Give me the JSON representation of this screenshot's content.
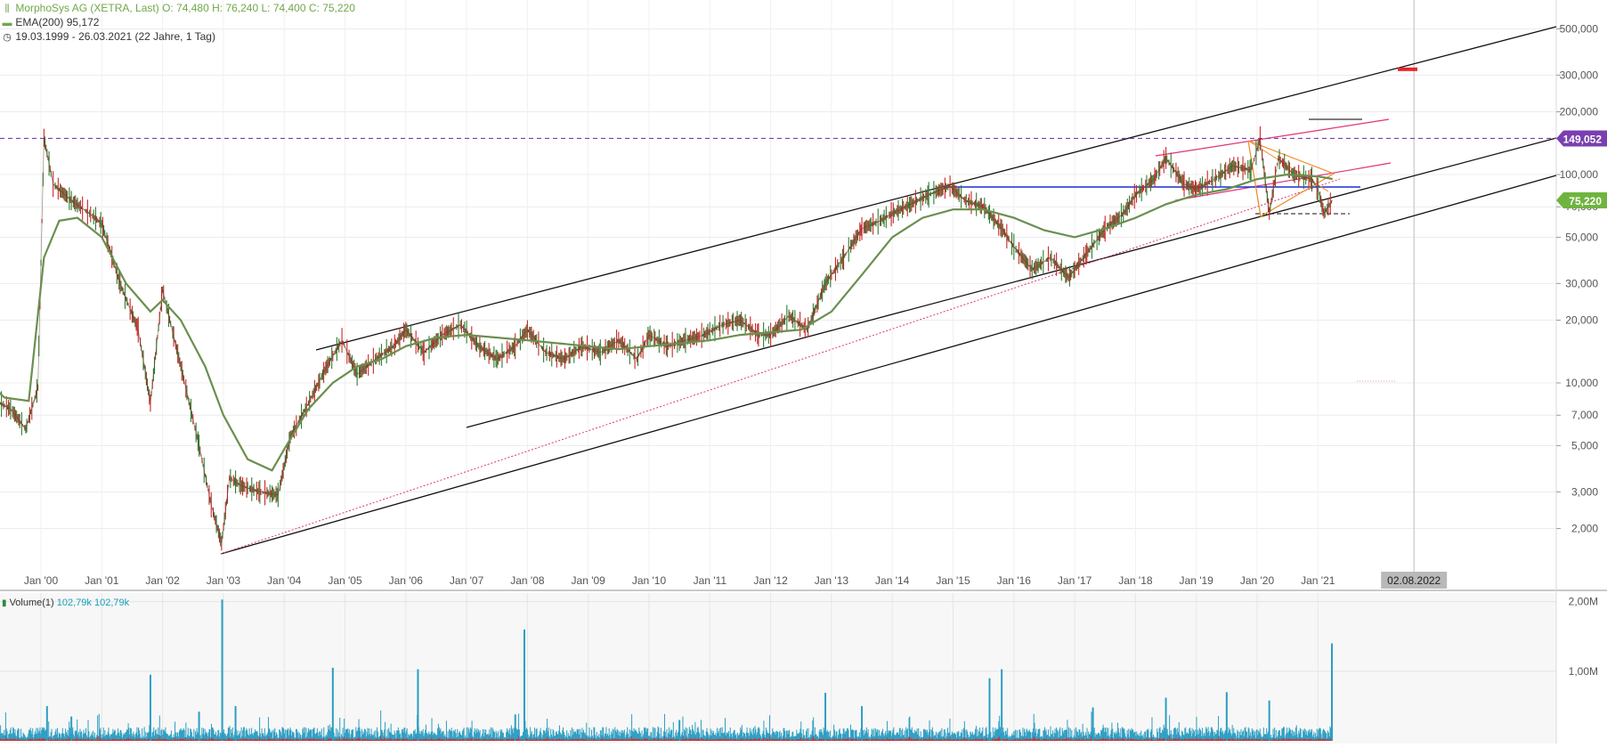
{
  "legend": {
    "title": "MorphoSys AG (XETRA, Last)",
    "ohlc": "O: 74,480  H: 76,240  L: 74,400  C: 75,220",
    "ema_label": "EMA(200)",
    "ema_value": "95,172",
    "range": "19.03.1999 - 26.03.2021",
    "range_detail": "(22 Jahre, 1 Tag)",
    "volume_label": "Volume(1)",
    "volume_value1": "102,79k",
    "volume_value2": "102,79k"
  },
  "colors": {
    "price_up": "#2e7d32",
    "price_down": "#c62828",
    "ema": "#6a8f4e",
    "channel": "#111111",
    "pink": "#e0337a",
    "blue_line": "#1a2fd6",
    "orange": "#f08a24",
    "resistance": "#7a3fb0",
    "last_price_badge": "#6fb43f",
    "level_badge": "#7a3fb0",
    "volume": "#2c9ec2",
    "volume_red": "#d32f2f",
    "marker_red": "#e5262a"
  },
  "badges": {
    "level": "149,052",
    "last_price": "75,220",
    "crosshair_date": "02.08.2022"
  },
  "chart_data": {
    "type": "line",
    "title": "MorphoSys AG (XETRA, Last)",
    "yscale": "log",
    "ylim": [
      1500,
      600000
    ],
    "x_ticks": [
      "Jan '00",
      "Jan '01",
      "Jan '02",
      "Jan '03",
      "Jan '04",
      "Jan '05",
      "Jan '06",
      "Jan '07",
      "Jan '08",
      "Jan '09",
      "Jan '10",
      "Jan '11",
      "Jan '12",
      "Jan '13",
      "Jan '14",
      "Jan '15",
      "Jan '16",
      "Jan '17",
      "Jan '18",
      "Jan '19",
      "Jan '20",
      "Jan '21"
    ],
    "y_ticks": [
      {
        "value": 500000,
        "label": "500,000"
      },
      {
        "value": 300000,
        "label": "300,000"
      },
      {
        "value": 200000,
        "label": "200,000"
      },
      {
        "value": 100000,
        "label": "100,000"
      },
      {
        "value": 70000,
        "label": "70,000"
      },
      {
        "value": 50000,
        "label": "50,000"
      },
      {
        "value": 30000,
        "label": "30,000"
      },
      {
        "value": 20000,
        "label": "20,000"
      },
      {
        "value": 10000,
        "label": "10,000"
      },
      {
        "value": 7000,
        "label": "7,000"
      },
      {
        "value": 5000,
        "label": "5,000"
      },
      {
        "value": 3000,
        "label": "3,000"
      },
      {
        "value": 2000,
        "label": "2,000"
      }
    ],
    "series": [
      {
        "name": "MorphoSys AG (XETRA, Last)",
        "x": [
          1999.0,
          1999.5,
          1999.75,
          1999.95,
          2000.05,
          2000.2,
          2000.5,
          2000.8,
          2001.0,
          2001.3,
          2001.6,
          2001.8,
          2002.0,
          2002.3,
          2002.6,
          2002.8,
          2002.97,
          2003.1,
          2003.3,
          2003.6,
          2003.9,
          2004.1,
          2004.4,
          2004.7,
          2004.95,
          2005.2,
          2005.5,
          2005.8,
          2006.0,
          2006.3,
          2006.6,
          2006.9,
          2007.2,
          2007.5,
          2007.8,
          2008.0,
          2008.3,
          2008.6,
          2008.9,
          2009.2,
          2009.5,
          2009.8,
          2010.0,
          2010.3,
          2010.6,
          2010.9,
          2011.2,
          2011.5,
          2011.8,
          2012.0,
          2012.3,
          2012.6,
          2012.9,
          2013.2,
          2013.5,
          2013.8,
          2014.0,
          2014.3,
          2014.6,
          2014.95,
          2015.2,
          2015.5,
          2015.8,
          2016.0,
          2016.3,
          2016.6,
          2016.9,
          2017.2,
          2017.5,
          2017.8,
          2018.0,
          2018.3,
          2018.5,
          2018.8,
          2019.0,
          2019.3,
          2019.6,
          2019.9,
          2020.05,
          2020.2,
          2020.35,
          2020.6,
          2020.9,
          2021.0,
          2021.1,
          2021.24
        ],
        "values": [
          9000,
          7500,
          6000,
          9500,
          150000,
          90000,
          75000,
          65000,
          58000,
          30000,
          18000,
          8000,
          28000,
          12000,
          5000,
          2600,
          1700,
          3500,
          3200,
          3000,
          2900,
          5500,
          8000,
          12000,
          16000,
          11000,
          13000,
          15000,
          18000,
          14000,
          17000,
          19000,
          15000,
          13000,
          15000,
          18000,
          14000,
          13000,
          15000,
          14000,
          16000,
          13000,
          17000,
          15000,
          16000,
          17000,
          19000,
          20000,
          17000,
          17000,
          21000,
          18000,
          30000,
          40000,
          55000,
          60000,
          65000,
          72000,
          80000,
          88000,
          75000,
          70000,
          55000,
          45000,
          35000,
          40000,
          32000,
          42000,
          55000,
          65000,
          80000,
          95000,
          120000,
          90000,
          85000,
          95000,
          110000,
          105000,
          149052,
          65000,
          120000,
          100000,
          95000,
          85000,
          65000,
          75220
        ]
      },
      {
        "name": "EMA(200)",
        "x": [
          1999.0,
          1999.4,
          1999.8,
          2000.05,
          2000.3,
          2000.6,
          2001.0,
          2001.4,
          2001.8,
          2002.0,
          2002.3,
          2002.7,
          2003.0,
          2003.4,
          2003.8,
          2004.0,
          2004.4,
          2004.8,
          2005.2,
          2005.6,
          2006.0,
          2006.5,
          2007.0,
          2007.5,
          2008.0,
          2008.5,
          2009.0,
          2009.5,
          2010.0,
          2010.5,
          2011.0,
          2011.5,
          2012.0,
          2012.5,
          2013.0,
          2013.5,
          2014.0,
          2014.5,
          2015.0,
          2015.5,
          2016.0,
          2016.5,
          2017.0,
          2017.5,
          2018.0,
          2018.5,
          2019.0,
          2019.5,
          2020.0,
          2020.5,
          2021.0,
          2021.24
        ],
        "values": [
          11000,
          8500,
          8200,
          40000,
          60000,
          62000,
          50000,
          30000,
          22000,
          25000,
          20000,
          12000,
          7000,
          4300,
          3800,
          4800,
          7500,
          10000,
          12000,
          13000,
          15000,
          16500,
          17000,
          16500,
          16000,
          15500,
          15000,
          14500,
          15000,
          15500,
          16000,
          17000,
          17500,
          18000,
          22000,
          33000,
          50000,
          62000,
          68000,
          68000,
          62000,
          54000,
          50000,
          55000,
          62000,
          72000,
          80000,
          85000,
          95000,
          100000,
          98000,
          95172
        ]
      }
    ],
    "volume": {
      "name": "Volume(1)",
      "ylim": [
        0,
        2200000
      ],
      "y_ticks": [
        {
          "value": 2000000,
          "label": "2,00M"
        },
        {
          "value": 1000000,
          "label": "1,00M"
        }
      ],
      "spikes": [
        {
          "x": 1999.3,
          "value": 320000
        },
        {
          "x": 2000.1,
          "value": 500000
        },
        {
          "x": 2000.5,
          "value": 350000
        },
        {
          "x": 2001.8,
          "value": 950000
        },
        {
          "x": 2002.6,
          "value": 420000
        },
        {
          "x": 2002.98,
          "value": 2030000
        },
        {
          "x": 2003.2,
          "value": 500000
        },
        {
          "x": 2004.8,
          "value": 1050000
        },
        {
          "x": 2006.2,
          "value": 1030000
        },
        {
          "x": 2007.8,
          "value": 380000
        },
        {
          "x": 2007.95,
          "value": 1600000
        },
        {
          "x": 2010.5,
          "value": 300000
        },
        {
          "x": 2012.9,
          "value": 690000
        },
        {
          "x": 2013.5,
          "value": 500000
        },
        {
          "x": 2015.6,
          "value": 900000
        },
        {
          "x": 2015.8,
          "value": 1030000
        },
        {
          "x": 2017.3,
          "value": 480000
        },
        {
          "x": 2018.5,
          "value": 620000
        },
        {
          "x": 2019.5,
          "value": 700000
        },
        {
          "x": 2020.2,
          "value": 580000
        },
        {
          "x": 2021.23,
          "value": 1400000
        }
      ],
      "last": "102,79k"
    }
  }
}
